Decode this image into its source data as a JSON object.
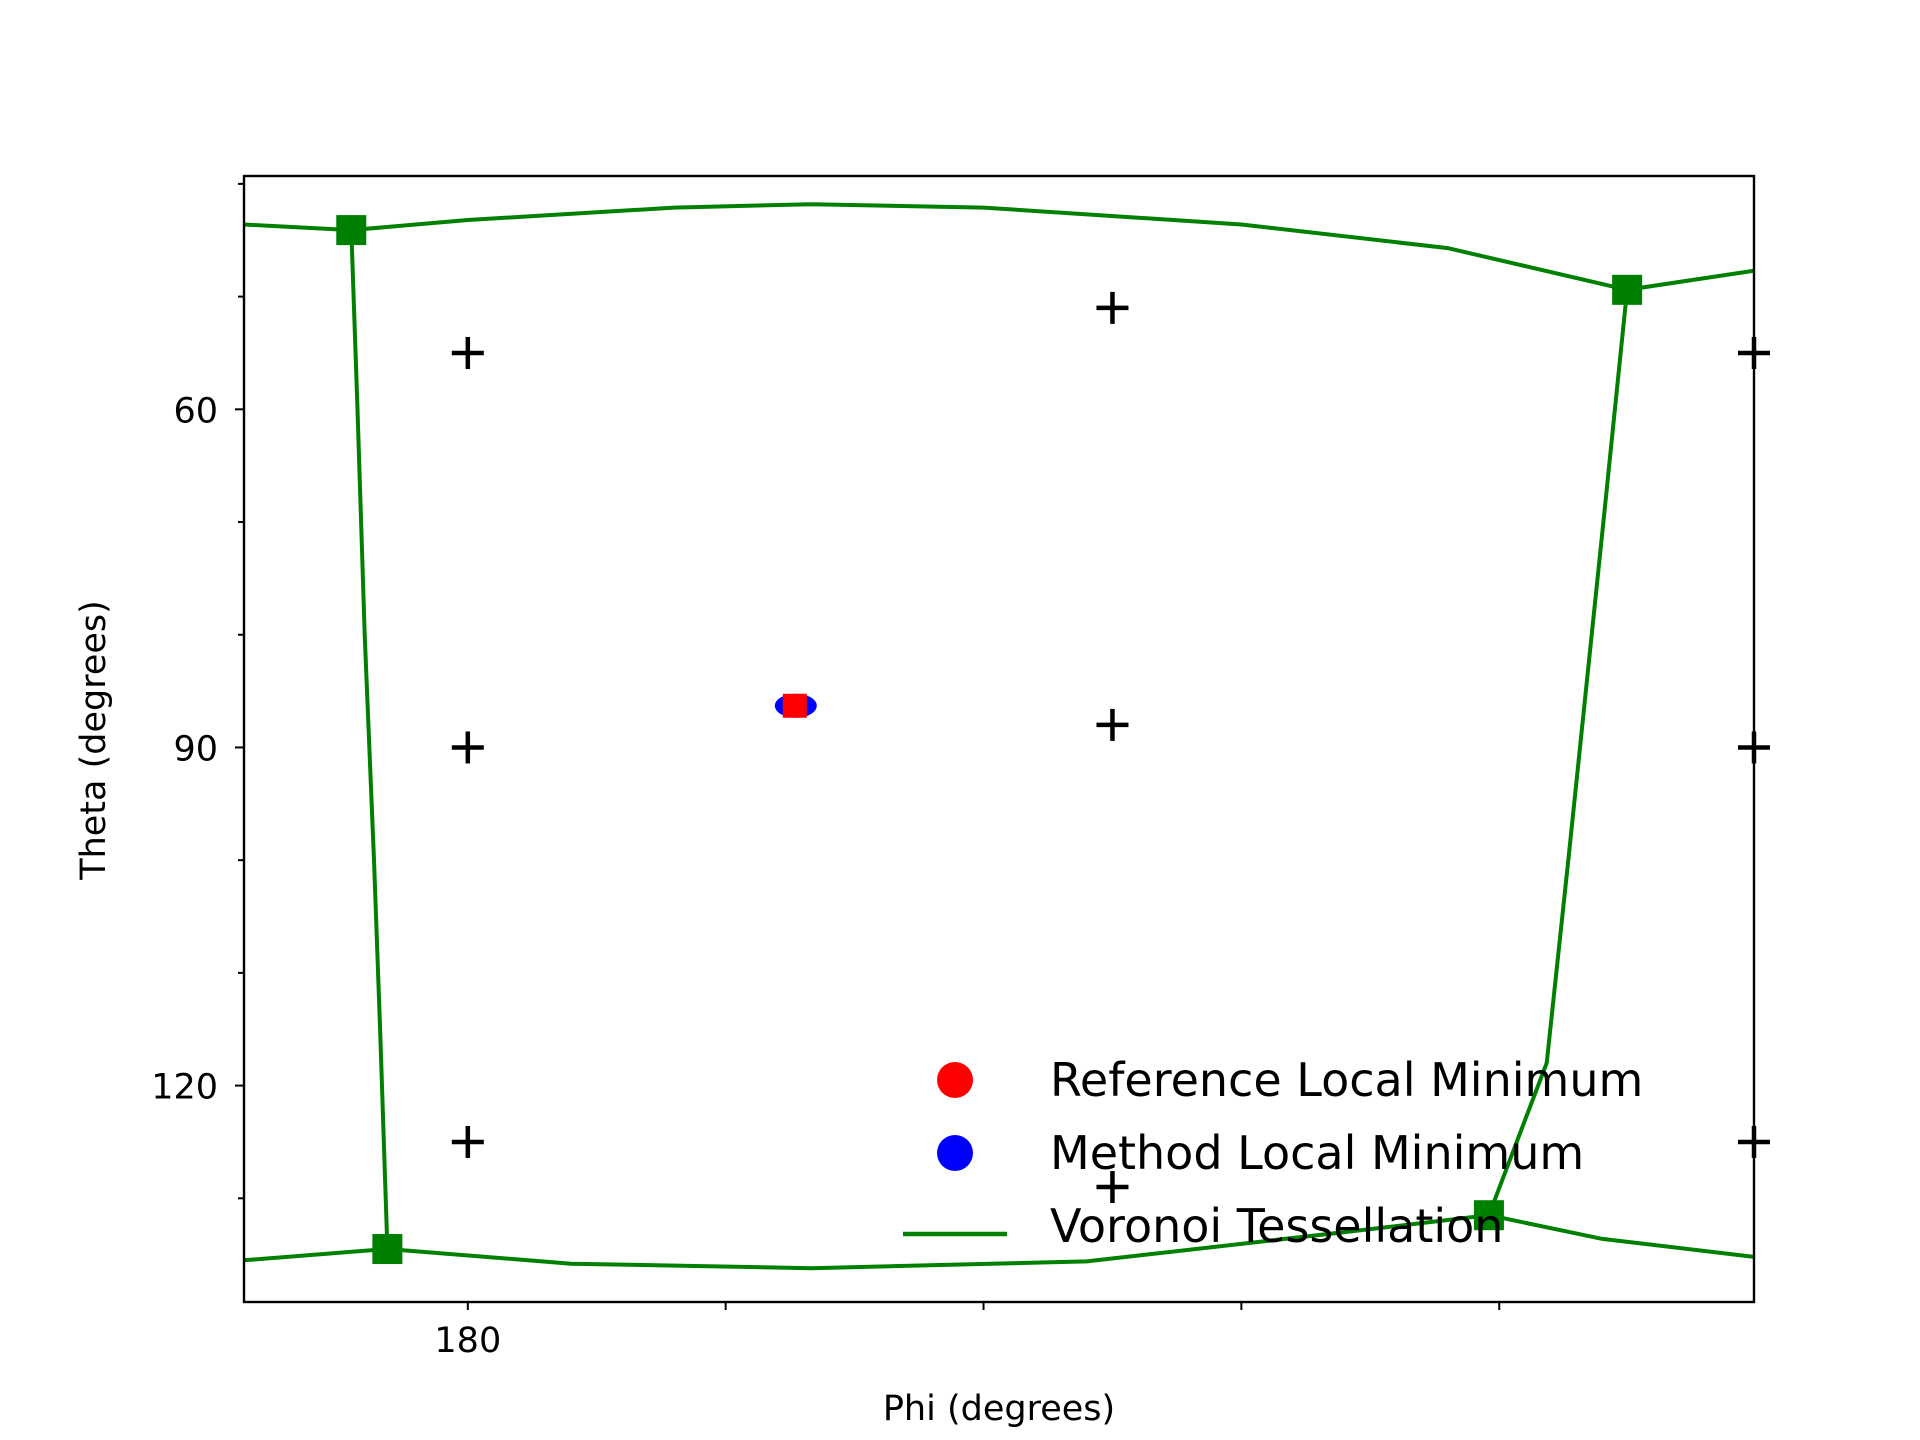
{
  "chart_data": {
    "type": "scatter",
    "title": "",
    "xlabel": "Phi (degrees)",
    "ylabel": "Theta (degrees)",
    "xlim": [
      158.3,
      304.7
    ],
    "ylim": [
      139.2,
      39.3
    ],
    "y_inverted": true,
    "x_ticks": [
      180,
      205,
      230,
      255,
      280
    ],
    "x_tick_labels": [
      "180",
      "",
      "",
      "",
      ""
    ],
    "y_ticks": [
      40,
      50,
      60,
      70,
      80,
      90,
      100,
      110,
      120,
      130
    ],
    "y_tick_labels": [
      "",
      "",
      "60",
      "",
      "",
      "90",
      "",
      "",
      "120",
      ""
    ],
    "grid": false,
    "legend_position": "lower-right",
    "colors": {
      "reference": "#ff0000",
      "method": "#0000ff",
      "voronoi": "#008000",
      "grid_points": "#000000"
    },
    "series": [
      {
        "name": "Reference Local Minimum",
        "marker": "circle",
        "color": "#ff0000",
        "points": [
          [
            211.7,
            86.3
          ]
        ]
      },
      {
        "name": "Method Local Minimum",
        "marker": "circle",
        "color": "#0000ff",
        "points": [
          [
            211.8,
            86.3
          ]
        ]
      },
      {
        "name": "Voronoi Tessellation",
        "marker": "line",
        "color": "#008000",
        "lines": [
          [
            [
              158.3,
              43.6
            ],
            [
              168.7,
              44.1
            ],
            [
              180,
              43.2
            ],
            [
              200,
              42.1
            ],
            [
              213.3,
              41.8
            ],
            [
              230,
              42.1
            ],
            [
              255,
              43.6
            ],
            [
              275,
              45.7
            ],
            [
              292.4,
              49.4
            ],
            [
              304.7,
              47.7
            ]
          ],
          [
            [
              168.7,
              44.1
            ],
            [
              169.3,
              60
            ],
            [
              170,
              80
            ],
            [
              170.9,
              100
            ],
            [
              171.5,
              115
            ],
            [
              172.2,
              134.5
            ]
          ],
          [
            [
              292.4,
              49.4
            ],
            [
              290.1,
              70
            ],
            [
              286.7,
              100
            ],
            [
              284.6,
              118
            ],
            [
              279,
              131.5
            ]
          ],
          [
            [
              158.3,
              135.5
            ],
            [
              172.2,
              134.5
            ],
            [
              190,
              135.8
            ],
            [
              213.3,
              136.2
            ],
            [
              240,
              135.6
            ],
            [
              265,
              133.0
            ],
            [
              279,
              131.5
            ],
            [
              290,
              133.6
            ],
            [
              304.7,
              135.2
            ]
          ]
        ],
        "vertices": [
          [
            168.7,
            44.1
          ],
          [
            292.4,
            49.4
          ],
          [
            172.2,
            134.5
          ],
          [
            279,
            131.5
          ]
        ]
      },
      {
        "name": "",
        "marker": "plus",
        "color": "#000000",
        "points": [
          [
            180,
            55
          ],
          [
            242.5,
            51
          ],
          [
            180,
            90
          ],
          [
            242.5,
            88
          ],
          [
            180,
            125
          ],
          [
            242.5,
            129
          ],
          [
            304.7,
            55
          ],
          [
            304.7,
            90
          ],
          [
            304.7,
            125
          ]
        ]
      }
    ],
    "legend": [
      {
        "label": "Reference Local Minimum",
        "marker": "circle",
        "color": "#ff0000"
      },
      {
        "label": "Method Local Minimum",
        "marker": "circle",
        "color": "#0000ff"
      },
      {
        "label": "Voronoi Tessellation",
        "marker": "line",
        "color": "#008000"
      }
    ]
  }
}
